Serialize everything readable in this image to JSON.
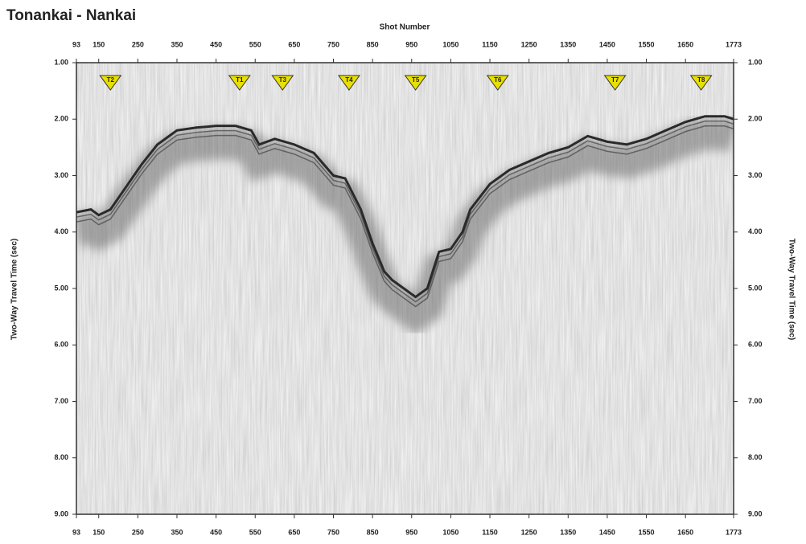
{
  "chart_data": {
    "type": "seismic",
    "title": "Tonankai  -  Nankai",
    "x_label": "Shot Number",
    "y_label": "Two-Way  Travel  Time  (sec)",
    "xlim": [
      93,
      1773
    ],
    "xticks": [
      93,
      150,
      250,
      350,
      450,
      550,
      650,
      750,
      850,
      950,
      1050,
      1150,
      1250,
      1350,
      1450,
      1550,
      1650,
      1773
    ],
    "ylim": [
      1,
      9
    ],
    "y_inverted": true,
    "yticks": [
      {
        "value": 1,
        "label": "1.00"
      },
      {
        "value": 2,
        "label": "2.00"
      },
      {
        "value": 3,
        "label": "3.00"
      },
      {
        "value": 4,
        "label": "4.00"
      },
      {
        "value": 5,
        "label": "5.00"
      },
      {
        "value": 6,
        "label": "6.00"
      },
      {
        "value": 7,
        "label": "7.00"
      },
      {
        "value": 8,
        "label": "8.00"
      },
      {
        "value": 9,
        "label": "9.00"
      }
    ],
    "color": "#2a2a2a",
    "x": [
      93,
      130,
      150,
      180,
      220,
      260,
      300,
      350,
      400,
      450,
      500,
      540,
      560,
      600,
      650,
      700,
      750,
      780,
      820,
      850,
      880,
      900,
      930,
      960,
      990,
      1020,
      1050,
      1080,
      1100,
      1150,
      1200,
      1250,
      1300,
      1350,
      1400,
      1450,
      1500,
      1550,
      1600,
      1650,
      1700,
      1750,
      1773
    ],
    "values": [
      3.65,
      3.6,
      3.7,
      3.6,
      3.2,
      2.8,
      2.45,
      2.2,
      2.15,
      2.12,
      2.12,
      2.2,
      2.45,
      2.35,
      2.45,
      2.6,
      3.0,
      3.05,
      3.6,
      4.2,
      4.7,
      4.85,
      5.0,
      5.15,
      5.0,
      4.35,
      4.3,
      4.0,
      3.6,
      3.15,
      2.9,
      2.75,
      2.6,
      2.5,
      2.3,
      2.4,
      2.45,
      2.35,
      2.2,
      2.05,
      1.95,
      1.95,
      2.0
    ],
    "stations": [
      {
        "shot": 180,
        "label": "T2"
      },
      {
        "shot": 510,
        "label": "T1"
      },
      {
        "shot": 620,
        "label": "T3"
      },
      {
        "shot": 790,
        "label": "T4"
      },
      {
        "shot": 960,
        "label": "T5"
      },
      {
        "shot": 1170,
        "label": "T6"
      },
      {
        "shot": 1470,
        "label": "T7"
      },
      {
        "shot": 1690,
        "label": "T8"
      }
    ]
  }
}
